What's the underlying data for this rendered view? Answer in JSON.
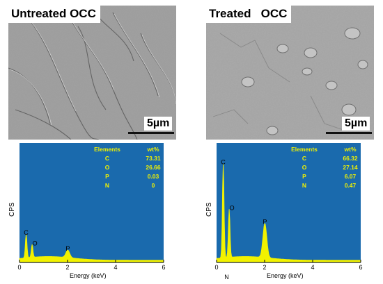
{
  "panels": [
    {
      "sem_label": "Untreated OCC",
      "scale_label": "5µm",
      "eds": {
        "table_header": [
          "Elements",
          "wt%"
        ],
        "rows": [
          [
            "C",
            "73.31"
          ],
          [
            "O",
            "26.66"
          ],
          [
            "P",
            "0.03"
          ],
          [
            "N",
            "0"
          ]
        ]
      }
    },
    {
      "sem_label": "Treated   OCC",
      "scale_label": "5µm",
      "eds": {
        "table_header": [
          "Elements",
          "wt%"
        ],
        "rows": [
          [
            "C",
            "66.32"
          ],
          [
            "O",
            "27.14"
          ],
          [
            "P",
            "6.07"
          ],
          [
            "N",
            "0.47"
          ]
        ]
      }
    }
  ],
  "colors": {
    "eds_background": "#1a6aad",
    "spectrum": "#f2f200",
    "table_text": "#f2f200"
  },
  "chart_data": [
    {
      "type": "area",
      "xlabel": "Energy (keV)",
      "ylabel": "CPS",
      "xlim": [
        0,
        6
      ],
      "xticks": [
        "0",
        "2",
        "4",
        "6"
      ],
      "peaks": [
        {
          "label": "C",
          "x": 0.277,
          "height": 0.22
        },
        {
          "label": "O",
          "x": 0.525,
          "height": 0.12
        },
        {
          "label": "P",
          "x": 2.01,
          "height": 0.07
        }
      ]
    },
    {
      "type": "area",
      "xlabel": "Energy (keV)",
      "ylabel": "CPS",
      "xlim": [
        0,
        6
      ],
      "xticks": [
        "0",
        "2",
        "4",
        "6"
      ],
      "peaks": [
        {
          "label": "C",
          "x": 0.277,
          "height": 0.88
        },
        {
          "label": "N",
          "x": 0.392,
          "height": 0.0
        },
        {
          "label": "O",
          "x": 0.525,
          "height": 0.45
        },
        {
          "label": "P",
          "x": 2.01,
          "height": 0.32
        }
      ]
    }
  ]
}
